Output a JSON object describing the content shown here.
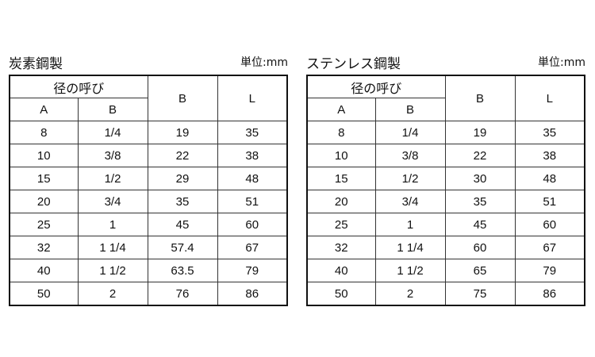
{
  "tables": [
    {
      "title": "炭素鋼製",
      "unit_label": "単位:",
      "unit": "mm",
      "header": {
        "group": "径の呼び",
        "a": "A",
        "b": "B",
        "col_b": "B",
        "col_l": "L"
      },
      "rows": [
        [
          "8",
          "1/4",
          "19",
          "35"
        ],
        [
          "10",
          "3/8",
          "22",
          "38"
        ],
        [
          "15",
          "1/2",
          "29",
          "48"
        ],
        [
          "20",
          "3/4",
          "35",
          "51"
        ],
        [
          "25",
          "1",
          "45",
          "60"
        ],
        [
          "32",
          "1 1/4",
          "57.4",
          "67"
        ],
        [
          "40",
          "1 1/2",
          "63.5",
          "79"
        ],
        [
          "50",
          "2",
          "76",
          "86"
        ]
      ]
    },
    {
      "title": "ステンレス鋼製",
      "unit_label": "単位:",
      "unit": "mm",
      "header": {
        "group": "径の呼び",
        "a": "A",
        "b": "B",
        "col_b": "B",
        "col_l": "L"
      },
      "rows": [
        [
          "8",
          "1/4",
          "19",
          "35"
        ],
        [
          "10",
          "3/8",
          "22",
          "38"
        ],
        [
          "15",
          "1/2",
          "30",
          "48"
        ],
        [
          "20",
          "3/4",
          "35",
          "51"
        ],
        [
          "25",
          "1",
          "45",
          "60"
        ],
        [
          "32",
          "1 1/4",
          "60",
          "67"
        ],
        [
          "40",
          "1 1/2",
          "65",
          "79"
        ],
        [
          "50",
          "2",
          "75",
          "86"
        ]
      ]
    }
  ]
}
